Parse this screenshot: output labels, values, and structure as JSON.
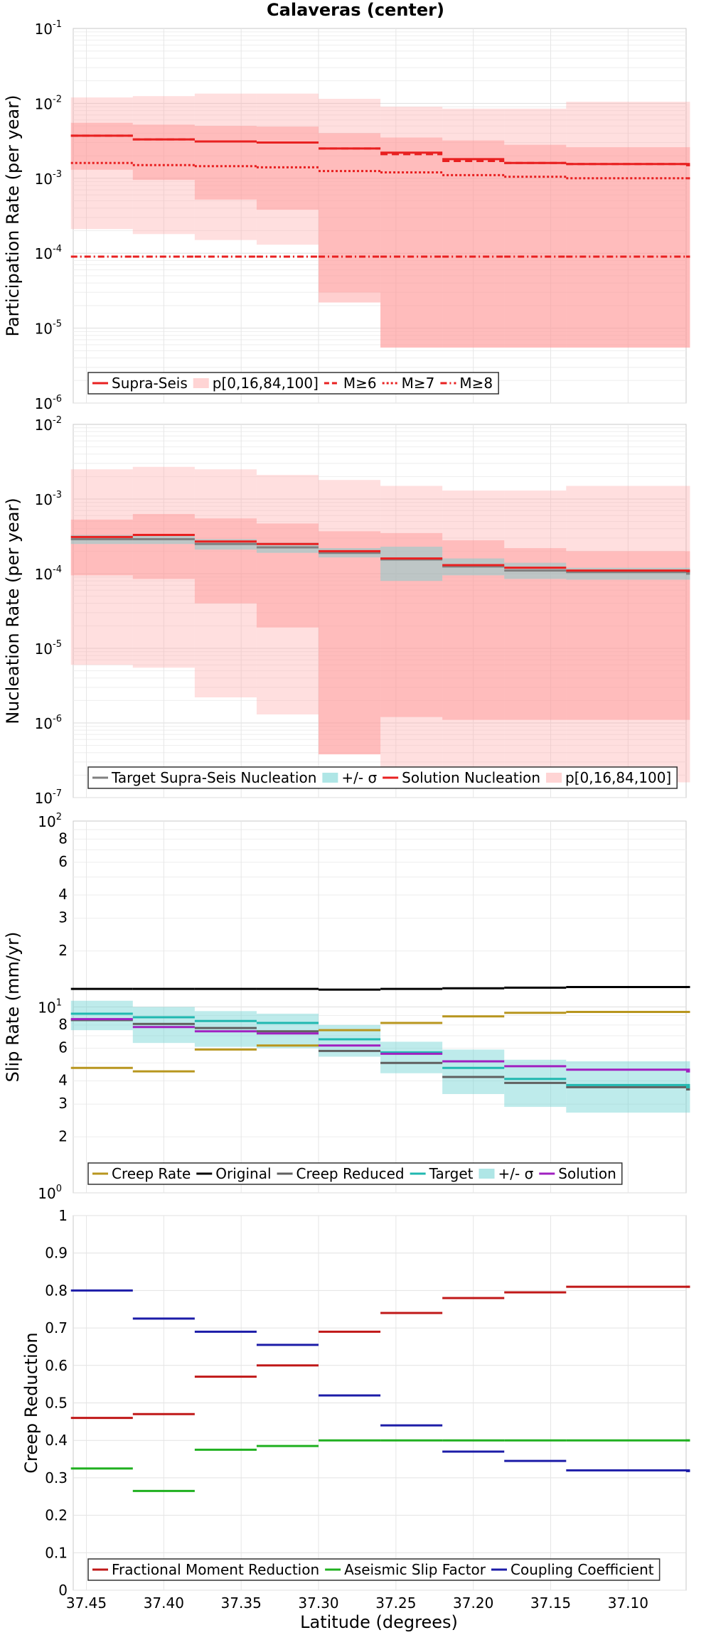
{
  "title": "Calaveras (center)",
  "xlabel": "Latitude (degrees)",
  "x_ticks": [
    "37.45",
    "37.40",
    "37.35",
    "37.30",
    "37.25",
    "37.20",
    "37.15",
    "37.10"
  ],
  "chart_data": [
    {
      "type": "line",
      "ylabel": "Participation Rate (per year)",
      "yscale": "log",
      "ylim": [
        1e-06,
        0.1
      ],
      "ytick_labels": [
        {
          "base": "10",
          "exp": "-6"
        },
        {
          "base": "10",
          "exp": "-5"
        },
        {
          "base": "10",
          "exp": "-4"
        },
        {
          "base": "10",
          "exp": "-3"
        },
        {
          "base": "10",
          "exp": "-2"
        },
        {
          "base": "10",
          "exp": "-1"
        }
      ],
      "legend": [
        "Supra-Seis",
        "p[0,16,84,100]",
        "M≥6",
        "M≥7",
        "M≥8"
      ],
      "x_edges": [
        37.46,
        37.42,
        37.38,
        37.34,
        37.3,
        37.26,
        37.22,
        37.18,
        37.14,
        37.06
      ],
      "bands": [
        {
          "name": "p0-p100",
          "lo": [
            0.00021,
            0.00018,
            0.00015,
            0.00013,
            3e-05,
            5.5e-06,
            5.5e-06,
            5.5e-06,
            5.5e-06,
            5.5e-06
          ],
          "hi": [
            0.012,
            0.0125,
            0.0135,
            0.0135,
            0.0115,
            0.009,
            0.0085,
            0.0085,
            0.0105,
            0.0105
          ]
        },
        {
          "name": "p16-p84",
          "lo": [
            0.0013,
            0.00095,
            0.00052,
            0.00038,
            2.2e-05,
            5.5e-06,
            5.5e-06,
            5.5e-06,
            5.5e-06,
            5.5e-06
          ],
          "hi": [
            0.0055,
            0.0052,
            0.005,
            0.0049,
            0.004,
            0.0035,
            0.0032,
            0.0028,
            0.0026,
            0.0025
          ]
        }
      ],
      "series": [
        {
          "name": "Supra-Seis",
          "values": [
            0.0037,
            0.0033,
            0.0031,
            0.003,
            0.0025,
            0.0022,
            0.0018,
            0.0016,
            0.00155,
            0.0015
          ]
        },
        {
          "name": "M≥6",
          "values": [
            0.0037,
            0.0033,
            0.0031,
            0.003,
            0.0025,
            0.0021,
            0.0017,
            0.0016,
            0.00155,
            0.0015
          ]
        },
        {
          "name": "M≥7",
          "values": [
            0.0016,
            0.0015,
            0.00145,
            0.0014,
            0.00125,
            0.0012,
            0.0011,
            0.00105,
            0.001,
            0.001
          ]
        },
        {
          "name": "M≥8",
          "values": [
            9e-05,
            9e-05,
            9e-05,
            9e-05,
            9e-05,
            9e-05,
            9e-05,
            9e-05,
            9e-05,
            9e-05
          ]
        }
      ]
    },
    {
      "type": "line",
      "ylabel": "Nucleation Rate (per year)",
      "yscale": "log",
      "ylim": [
        1e-07,
        0.01
      ],
      "ytick_labels": [
        {
          "base": "10",
          "exp": "-7"
        },
        {
          "base": "10",
          "exp": "-6"
        },
        {
          "base": "10",
          "exp": "-5"
        },
        {
          "base": "10",
          "exp": "-4"
        },
        {
          "base": "10",
          "exp": "-3"
        },
        {
          "base": "10",
          "exp": "-2"
        }
      ],
      "legend": [
        "Target Supra-Seis Nucleation",
        "+/- σ",
        "Solution Nucleation",
        "p[0,16,84,100]"
      ],
      "x_edges": [
        37.46,
        37.42,
        37.38,
        37.34,
        37.3,
        37.26,
        37.22,
        37.18,
        37.14,
        37.06
      ],
      "bands": [
        {
          "name": "p0-p100",
          "lo": [
            6e-06,
            5.5e-06,
            2.2e-06,
            1.3e-06,
            3.8e-07,
            1.8e-07,
            1.7e-07,
            1.7e-07,
            1.6e-07,
            1.6e-07
          ],
          "hi": [
            0.0025,
            0.0027,
            0.0025,
            0.0021,
            0.0018,
            0.0015,
            0.0013,
            0.0013,
            0.0015,
            0.0015
          ]
        },
        {
          "name": "p16-p84",
          "lo": [
            9.5e-05,
            8.5e-05,
            4e-05,
            1.9e-05,
            3.8e-07,
            1.2e-06,
            1.1e-06,
            1.1e-06,
            1.1e-06,
            1.1e-06
          ],
          "hi": [
            0.00053,
            0.00063,
            0.00055,
            0.00047,
            0.00037,
            0.00035,
            0.00028,
            0.00022,
            0.0002,
            0.00019
          ]
        },
        {
          "name": "sigma",
          "lo": [
            0.00025,
            0.00025,
            0.00021,
            0.00019,
            0.000165,
            8e-05,
            9.5e-05,
            8.5e-05,
            8.3e-05,
            8.2e-05
          ],
          "hi": [
            0.00033,
            0.00033,
            0.00029,
            0.00026,
            0.00022,
            0.00023,
            0.00016,
            0.00014,
            0.00012,
            0.00012
          ]
        }
      ],
      "series": [
        {
          "name": "Target Supra-Seis Nucleation",
          "values": [
            0.00029,
            0.00029,
            0.00025,
            0.000225,
            0.00019,
            0.000155,
            0.000125,
            0.00011,
            0.000105,
            0.0001
          ]
        },
        {
          "name": "Solution Nucleation",
          "values": [
            0.00031,
            0.00033,
            0.00027,
            0.00025,
            0.0002,
            0.00016,
            0.00013,
            0.00012,
            0.00011,
            0.000108
          ]
        }
      ]
    },
    {
      "type": "line",
      "ylabel": "Slip Rate (mm/yr)",
      "yscale": "log",
      "ylim": [
        1,
        100
      ],
      "ytick_labels": [
        {
          "base": "10",
          "exp": "0"
        },
        {
          "base": "10",
          "exp": "1"
        },
        {
          "base": "10",
          "exp": "2"
        }
      ],
      "minor_ticks": [
        2,
        3,
        4,
        6,
        8,
        20,
        30,
        40,
        60,
        80
      ],
      "minor_labels": [
        "2",
        "3",
        "4",
        "6",
        "8",
        "2",
        "3",
        "4",
        "6",
        "8"
      ],
      "legend": [
        "Creep Rate",
        "Original",
        "Creep Reduced",
        "Target",
        "+/- σ",
        "Solution"
      ],
      "x_edges": [
        37.46,
        37.42,
        37.38,
        37.34,
        37.3,
        37.26,
        37.22,
        37.18,
        37.14,
        37.06
      ],
      "bands": [
        {
          "name": "sigma",
          "lo": [
            7.5,
            6.4,
            6.1,
            6.0,
            5.4,
            4.4,
            3.4,
            2.9,
            2.7,
            2.7
          ],
          "hi": [
            10.8,
            10.0,
            9.5,
            9.2,
            8.0,
            6.5,
            5.9,
            5.2,
            5.1,
            5.1
          ]
        }
      ],
      "series": [
        {
          "name": "Creep Rate",
          "values": [
            4.7,
            4.5,
            5.9,
            6.2,
            7.5,
            8.2,
            8.9,
            9.3,
            9.4,
            9.4
          ]
        },
        {
          "name": "Original",
          "values": [
            12.5,
            12.5,
            12.5,
            12.5,
            12.4,
            12.5,
            12.6,
            12.7,
            12.8,
            12.8
          ]
        },
        {
          "name": "Creep Reduced",
          "values": [
            8.5,
            8.1,
            7.7,
            7.4,
            5.8,
            5.0,
            4.2,
            3.9,
            3.7,
            3.6
          ]
        },
        {
          "name": "Target",
          "values": [
            9.2,
            8.8,
            8.4,
            8.2,
            6.7,
            5.7,
            4.7,
            4.1,
            3.8,
            3.7
          ]
        },
        {
          "name": "Solution",
          "values": [
            8.6,
            7.8,
            7.4,
            7.2,
            6.2,
            5.6,
            5.1,
            4.8,
            4.6,
            4.5
          ]
        }
      ]
    },
    {
      "type": "line",
      "ylabel": "Creep Reduction",
      "yscale": "linear",
      "ylim": [
        0,
        1
      ],
      "ytick_labels": [
        "0",
        "0.1",
        "0.2",
        "0.3",
        "0.4",
        "0.5",
        "0.6",
        "0.7",
        "0.8",
        "0.9",
        "1"
      ],
      "legend": [
        "Fractional Moment Reduction",
        "Aseismic Slip Factor",
        "Coupling Coefficient"
      ],
      "x_edges": [
        37.46,
        37.42,
        37.38,
        37.34,
        37.3,
        37.26,
        37.22,
        37.18,
        37.14,
        37.06
      ],
      "series": [
        {
          "name": "Fractional Moment Reduction",
          "values": [
            0.46,
            0.47,
            0.57,
            0.6,
            0.69,
            0.74,
            0.78,
            0.795,
            0.81,
            0.81
          ]
        },
        {
          "name": "Aseismic Slip Factor",
          "values": [
            0.325,
            0.265,
            0.375,
            0.385,
            0.4,
            0.4,
            0.4,
            0.4,
            0.4,
            0.4
          ]
        },
        {
          "name": "Coupling Coefficient",
          "values": [
            0.8,
            0.725,
            0.69,
            0.655,
            0.52,
            0.44,
            0.37,
            0.345,
            0.32,
            0.318
          ]
        }
      ]
    }
  ]
}
